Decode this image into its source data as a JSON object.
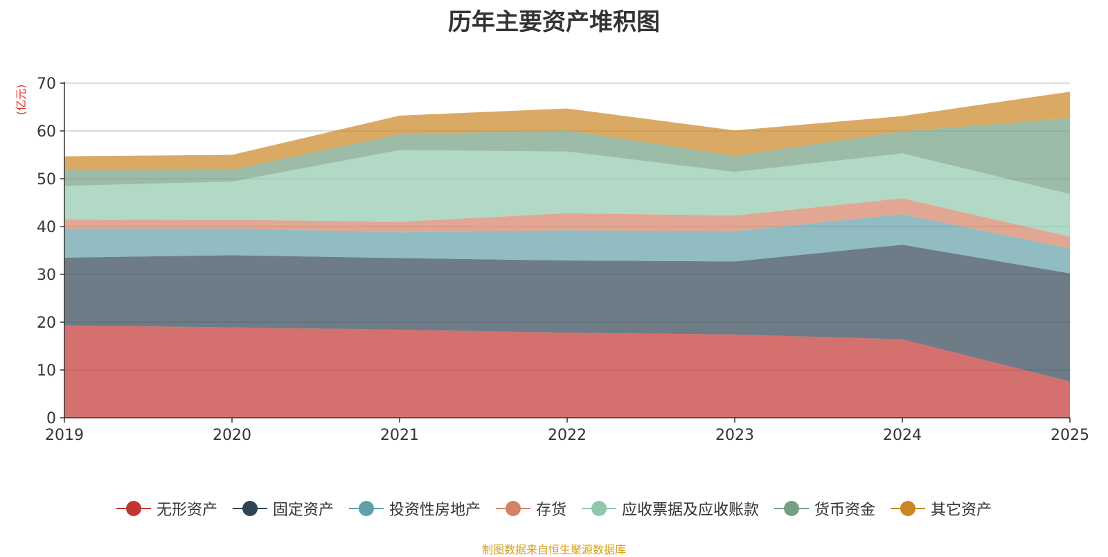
{
  "chart_data": {
    "type": "area",
    "stacked": true,
    "title": "历年主要资产堆积图",
    "ylabel": "(亿元)",
    "xlabel": "",
    "ylim": [
      0,
      70
    ],
    "yticks": [
      0,
      10,
      20,
      30,
      40,
      50,
      60,
      70
    ],
    "categories": [
      "2019",
      "2020",
      "2021",
      "2022",
      "2023",
      "2024",
      "2025"
    ],
    "series": [
      {
        "name": "无形资产",
        "color": "#c23531",
        "values": [
          19.3,
          18.9,
          18.4,
          17.8,
          17.4,
          16.4,
          7.6
        ]
      },
      {
        "name": "固定资产",
        "color": "#2f4554",
        "values": [
          14.2,
          15.1,
          15.0,
          15.1,
          15.3,
          19.8,
          22.6
        ]
      },
      {
        "name": "投资性房地产",
        "color": "#61a0a8",
        "values": [
          6.0,
          5.6,
          5.4,
          6.3,
          6.3,
          6.4,
          5.2
        ]
      },
      {
        "name": "存货",
        "color": "#d48265",
        "values": [
          2.0,
          1.8,
          2.2,
          3.6,
          3.3,
          3.3,
          2.5
        ]
      },
      {
        "name": "应收票据及应收账款",
        "color": "#91c7ae",
        "values": [
          7.0,
          8.0,
          15.0,
          12.9,
          9.1,
          9.4,
          8.9
        ]
      },
      {
        "name": "货币资金",
        "color": "#749f83",
        "values": [
          3.3,
          2.5,
          3.3,
          4.4,
          3.4,
          4.6,
          15.9
        ]
      },
      {
        "name": "其它资产",
        "color": "#ca8622",
        "values": [
          2.9,
          3.1,
          3.9,
          4.6,
          5.3,
          3.2,
          5.5
        ]
      }
    ],
    "legend_position": "bottom",
    "grid": true
  },
  "source_note": "制图数据来自恒生聚源数据库"
}
